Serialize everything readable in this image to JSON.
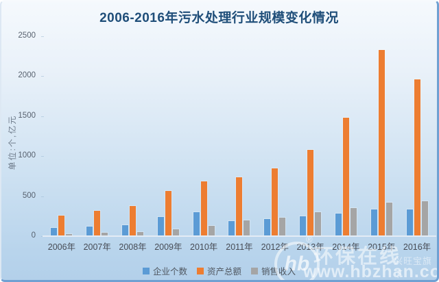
{
  "chart_data": {
    "type": "bar",
    "title": "2006-2016年污水处理行业规模变化情况",
    "ylabel": "单位:个,亿元",
    "xlabel": "",
    "categories": [
      "2006年",
      "2007年",
      "2008年",
      "2009年",
      "2010年",
      "2011年",
      "2012年",
      "2013年",
      "2014年",
      "2015年",
      "2016年"
    ],
    "series": [
      {
        "name": "企业个数",
        "color": "#5B9BD5",
        "values": [
          100,
          120,
          135,
          240,
          300,
          190,
          215,
          250,
          280,
          330,
          330
        ]
      },
      {
        "name": "资产总额",
        "color": "#ED7D31",
        "values": [
          260,
          315,
          375,
          565,
          685,
          735,
          845,
          1080,
          1480,
          2330,
          1960
        ]
      },
      {
        "name": "销售收入",
        "color": "#A5A5A5",
        "values": [
          30,
          40,
          50,
          90,
          130,
          195,
          235,
          300,
          350,
          420,
          440
        ]
      }
    ],
    "ylim": [
      0,
      2500
    ],
    "yticks": [
      0,
      500,
      1000,
      1500,
      2000,
      2500
    ],
    "grid": false,
    "legend_position": "bottom"
  },
  "colors": {
    "title_text": "#1f4e79",
    "axis_text": "#57616e",
    "background_top": "#f5f9fd",
    "background_bottom": "#b3d0ea",
    "border_blue": "#6fa0d2"
  },
  "watermark": {
    "logo_text": "hb",
    "registered": "®",
    "brand": "环保在线",
    "sub_brand": "兴旺宝旗下",
    "url": "www.hbzhan.com"
  }
}
